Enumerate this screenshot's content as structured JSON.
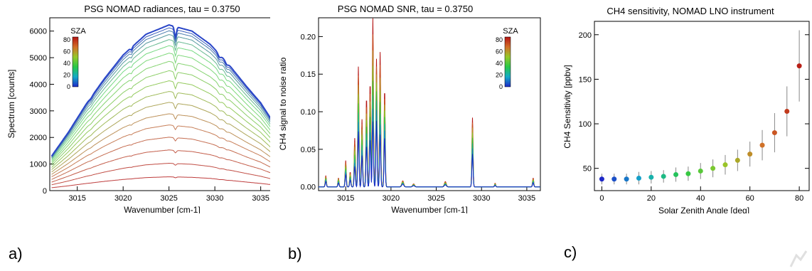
{
  "panel_labels": [
    "a)",
    "b)",
    "c)"
  ],
  "chart_data": [
    {
      "type": "line",
      "title": "PSG NOMAD radiances, tau = 0.3750",
      "xlabel": "Wavenumber [cm-1]",
      "ylabel": "Spectrum [counts]",
      "xlim": [
        3012,
        3036.5
      ],
      "ylim": [
        0,
        6500
      ],
      "xticks": [
        3015,
        3020,
        3025,
        3030,
        3035
      ],
      "yticks": [
        0,
        1000,
        2000,
        3000,
        4000,
        5000,
        6000
      ],
      "colorbar": {
        "label": "SZA",
        "ticks": [
          0,
          20,
          40,
          60,
          80
        ],
        "range": [
          0,
          85
        ]
      },
      "series": [
        {
          "sza": 0,
          "values": [
            1300,
            2180,
            3270,
            4230,
            5100,
            5880,
            6230,
            6000,
            5500,
            4750,
            3900,
            3300,
            2600
          ]
        },
        {
          "sza": 5,
          "values": [
            1280,
            2150,
            3220,
            4170,
            5020,
            5780,
            6120,
            5900,
            5400,
            4670,
            3840,
            3250,
            2560
          ]
        },
        {
          "sza": 10,
          "values": [
            1260,
            2110,
            3160,
            4090,
            4930,
            5680,
            6010,
            5800,
            5310,
            4590,
            3770,
            3190,
            2510
          ]
        },
        {
          "sza": 15,
          "values": [
            1230,
            2060,
            3080,
            3990,
            4810,
            5540,
            5870,
            5660,
            5180,
            4480,
            3680,
            3110,
            2450
          ]
        },
        {
          "sza": 20,
          "values": [
            1190,
            1990,
            2980,
            3860,
            4660,
            5360,
            5680,
            5480,
            5010,
            4330,
            3560,
            3010,
            2370
          ]
        },
        {
          "sza": 25,
          "values": [
            1140,
            1910,
            2860,
            3700,
            4470,
            5140,
            5450,
            5260,
            4810,
            4160,
            3420,
            2890,
            2280
          ]
        },
        {
          "sza": 30,
          "values": [
            1080,
            1810,
            2720,
            3510,
            4240,
            4880,
            5170,
            4990,
            4560,
            3950,
            3240,
            2740,
            2160
          ]
        },
        {
          "sza": 35,
          "values": [
            1020,
            1700,
            2550,
            3300,
            3980,
            4580,
            4860,
            4680,
            4280,
            3710,
            3040,
            2570,
            2030
          ]
        },
        {
          "sza": 40,
          "values": [
            950,
            1580,
            2370,
            3060,
            3690,
            4250,
            4510,
            4350,
            3980,
            3440,
            2820,
            2390,
            1890
          ]
        },
        {
          "sza": 45,
          "values": [
            870,
            1450,
            2170,
            2810,
            3390,
            3900,
            4130,
            3980,
            3640,
            3150,
            2590,
            2190,
            1730
          ]
        },
        {
          "sza": 50,
          "values": [
            790,
            1310,
            1960,
            2540,
            3060,
            3520,
            3730,
            3600,
            3290,
            2850,
            2340,
            1980,
            1560
          ]
        },
        {
          "sza": 55,
          "values": [
            700,
            1170,
            1740,
            2260,
            2720,
            3130,
            3320,
            3200,
            2930,
            2530,
            2080,
            1760,
            1390
          ]
        },
        {
          "sza": 60,
          "values": [
            610,
            1020,
            1520,
            1970,
            2370,
            2730,
            2890,
            2790,
            2550,
            2210,
            1810,
            1530,
            1210
          ]
        },
        {
          "sza": 65,
          "values": [
            520,
            870,
            1300,
            1680,
            2020,
            2330,
            2470,
            2380,
            2170,
            1880,
            1550,
            1310,
            1030
          ]
        },
        {
          "sza": 70,
          "values": [
            420,
            710,
            1060,
            1370,
            1650,
            1900,
            2010,
            1940,
            1770,
            1540,
            1260,
            1070,
            840
          ]
        },
        {
          "sza": 75,
          "values": [
            320,
            540,
            800,
            1040,
            1250,
            1440,
            1530,
            1470,
            1350,
            1170,
            960,
            810,
            640
          ]
        },
        {
          "sza": 80,
          "values": [
            220,
            360,
            540,
            700,
            840,
            970,
            1030,
            990,
            910,
            780,
            640,
            540,
            430
          ]
        },
        {
          "sza": 85,
          "values": [
            110,
            180,
            270,
            350,
            420,
            490,
            520,
            500,
            460,
            390,
            320,
            270,
            220
          ]
        }
      ],
      "x": [
        3012.2,
        3014,
        3016,
        3018,
        3020,
        3022.5,
        3025,
        3027.5,
        3029.5,
        3031.5,
        3033.5,
        3035,
        3036.3
      ]
    },
    {
      "type": "line",
      "title": "PSG NOMAD SNR, tau = 0.3750",
      "xlabel": "Wavenumber [cm-1]",
      "ylabel": "CH4 signal to noise ratio",
      "xlim": [
        3012,
        3036.5
      ],
      "ylim": [
        -0.005,
        0.225
      ],
      "xticks": [
        3015,
        3020,
        3025,
        3030,
        3035
      ],
      "yticks": [
        "0.00",
        "0.05",
        "0.10",
        "0.15",
        "0.20"
      ],
      "colorbar": {
        "label": "SZA",
        "ticks": [
          0,
          20,
          40,
          60,
          80
        ],
        "range": [
          0,
          85
        ]
      },
      "peaks_envelope": [
        {
          "x": 3012.8,
          "y": 0.015
        },
        {
          "x": 3014.2,
          "y": 0.012
        },
        {
          "x": 3015.0,
          "y": 0.035
        },
        {
          "x": 3015.5,
          "y": 0.02
        },
        {
          "x": 3016.0,
          "y": 0.065
        },
        {
          "x": 3016.4,
          "y": 0.16
        },
        {
          "x": 3016.8,
          "y": 0.09
        },
        {
          "x": 3017.3,
          "y": 0.12
        },
        {
          "x": 3017.7,
          "y": 0.14
        },
        {
          "x": 3018.0,
          "y": 0.225
        },
        {
          "x": 3018.4,
          "y": 0.17
        },
        {
          "x": 3018.8,
          "y": 0.18
        },
        {
          "x": 3019.3,
          "y": 0.13
        },
        {
          "x": 3021.3,
          "y": 0.008
        },
        {
          "x": 3022.5,
          "y": 0.004
        },
        {
          "x": 3026.0,
          "y": 0.007
        },
        {
          "x": 3029.0,
          "y": 0.092
        },
        {
          "x": 3031.5,
          "y": 0.005
        },
        {
          "x": 3035.7,
          "y": 0.012
        }
      ]
    },
    {
      "type": "scatter",
      "title": "CH4 sensitivity, NOMAD LNO instrument",
      "xlabel": "Solar Zenith Angle [deg]",
      "ylabel": "CH4 Sensitivity [ppbv]",
      "xlim": [
        -3,
        84
      ],
      "ylim": [
        25,
        215
      ],
      "xticks": [
        0,
        20,
        40,
        60,
        80
      ],
      "yticks": [
        50,
        100,
        150,
        200
      ],
      "x": [
        0,
        5,
        10,
        15,
        20,
        25,
        30,
        35,
        40,
        45,
        50,
        55,
        60,
        65,
        70,
        75,
        80
      ],
      "y": [
        38,
        38,
        38,
        39,
        40,
        41,
        43,
        44,
        47,
        50,
        54,
        59,
        66,
        76,
        90,
        114,
        165
      ],
      "err": [
        6,
        6,
        6,
        7,
        7,
        7,
        8,
        8,
        9,
        10,
        11,
        12,
        14,
        17,
        22,
        28,
        40
      ]
    }
  ]
}
